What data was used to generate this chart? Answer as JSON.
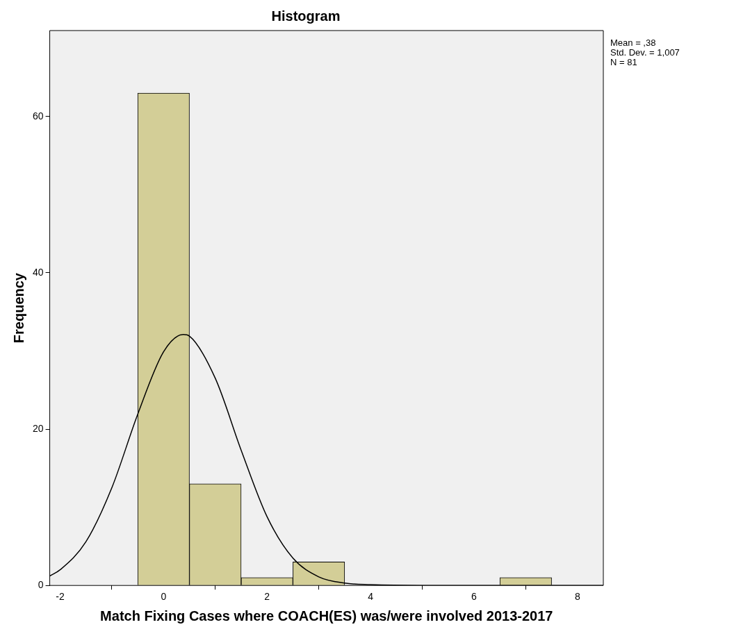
{
  "chart_data": {
    "type": "histogram",
    "title": "Histogram",
    "xlabel": "Match Fixing Cases where COACH(ES) was/were involved 2013-2017",
    "ylabel": "Frequency",
    "bins": [
      -0.5,
      0.5,
      1.5,
      2.5,
      3.5,
      4.5,
      5.5,
      6.5,
      7.5
    ],
    "values": [
      63,
      13,
      1,
      3,
      0,
      0,
      0,
      1
    ],
    "color": "#d3ce97",
    "series": [
      {
        "type": "line",
        "color": "#000000",
        "x": [
          -2.2,
          -2,
          -1.5,
          -1,
          -0.5,
          0,
          0.38,
          0.5,
          1,
          1.5,
          2,
          2.5,
          3,
          3.5,
          4,
          5,
          6,
          7,
          8.5
        ],
        "values": [
          1.2,
          2,
          5.6,
          12.5,
          21.9,
          29.9,
          32.1,
          31.9,
          26.5,
          17.3,
          8.8,
          3.5,
          1.1,
          0.3,
          0.1,
          0,
          0,
          0,
          0
        ]
      }
    ],
    "xlim": [
      -2.2,
      8.5
    ],
    "xticks": [
      -2,
      0,
      2,
      4,
      6,
      8
    ],
    "ylim": [
      0,
      71
    ],
    "yticks": [
      0,
      20,
      40,
      60
    ],
    "grid": false,
    "legend": false,
    "marker": "none",
    "annotations": [
      "Mean = ,38",
      "Std. Dev. = 1,007",
      "N = 81"
    ]
  }
}
